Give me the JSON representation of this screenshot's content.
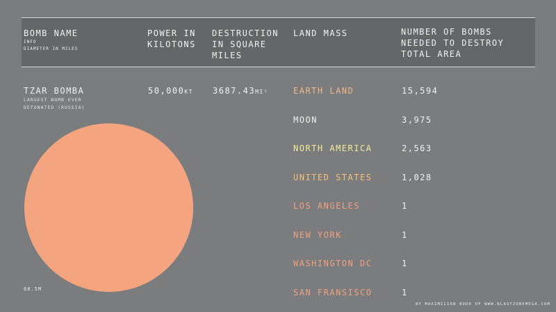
{
  "header": {
    "col1_title": "BOMB NAME",
    "col1_sub1": "INFO",
    "col1_sub2": "DIAMETER IN MILES",
    "col2_line1": "POWER IN",
    "col2_line2": "KILOTONS",
    "col3_line1": "DESTRUCTION",
    "col3_line2": "IN SQUARE",
    "col3_line3": "MILES",
    "col4": "LAND MASS",
    "col5_line1": "NUMBER OF BOMBS",
    "col5_line2": "NEEDED TO DESTROY",
    "col5_line3": "TOTAL AREA"
  },
  "bomb": {
    "name": "TZAR BOMBA",
    "desc_line1": "LARGEST BOMB EVER",
    "desc_line2": "DETONATED (RUSSIA)",
    "power_value": "50,000",
    "power_unit": "KT",
    "area_value": "3687.43",
    "area_unit": "MI²",
    "diameter": "68.5M",
    "circle_color": "#f4a57f"
  },
  "rows": [
    {
      "land": "EARTH LAND",
      "count": "15,594",
      "color": "#f0b98a"
    },
    {
      "land": "MOON",
      "count": "3,975",
      "color": "#f2f2f2"
    },
    {
      "land": "NORTH AMERICA",
      "count": "2,563",
      "color": "#f2ee9a"
    },
    {
      "land": "UNITED STATES",
      "count": "1,028",
      "color": "#f4c27c"
    },
    {
      "land": "LOS ANGELES",
      "count": "1",
      "color": "#f0a27f"
    },
    {
      "land": "NEW YORK",
      "count": "1",
      "color": "#f0a27f"
    },
    {
      "land": "WASHINGTON DC",
      "count": "1",
      "color": "#f0a27f"
    },
    {
      "land": "SAN FRANSISCO",
      "count": "1",
      "color": "#f0a27f"
    }
  ],
  "credit": "BY MAXIMILIAN BODE OF WWW.BLASTZONEMEGA.COM"
}
